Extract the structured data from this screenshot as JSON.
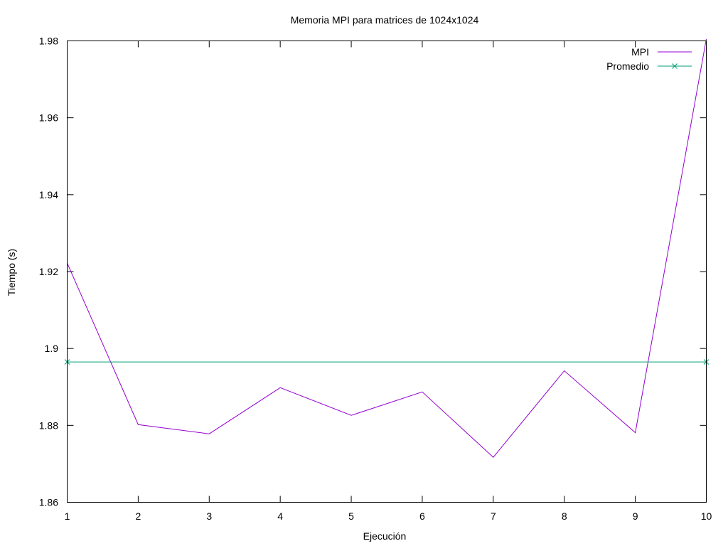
{
  "chart_data": {
    "type": "line",
    "title": "Memoria MPI para matrices de 1024x1024",
    "xlabel": "Ejecución",
    "ylabel": "Tiempo (s)",
    "xlim": [
      1,
      10
    ],
    "ylim": [
      1.86,
      1.98
    ],
    "x_ticks": [
      1,
      2,
      3,
      4,
      5,
      6,
      7,
      8,
      9,
      10
    ],
    "x_tick_labels": [
      "1",
      "2",
      "3",
      "4",
      "5",
      "6",
      "7",
      "8",
      "9",
      "10"
    ],
    "y_ticks": [
      1.86,
      1.88,
      1.9,
      1.92,
      1.94,
      1.96,
      1.98
    ],
    "y_tick_labels": [
      "1.86",
      "1.88",
      "1.9",
      "1.92",
      "1.94",
      "1.96",
      "1.98"
    ],
    "grid": false,
    "legend_position": "top-right",
    "series": [
      {
        "name": "MPI",
        "color": "#9400d3",
        "marker": "none",
        "x": [
          1,
          2,
          3,
          4,
          5,
          6,
          7,
          8,
          9,
          10
        ],
        "y": [
          1.9222,
          1.8802,
          1.8778,
          1.8898,
          1.8826,
          1.8887,
          1.8717,
          1.8942,
          1.8781,
          1.9805
        ]
      },
      {
        "name": "Promedio",
        "color": "#009e73",
        "marker": "x",
        "x": [
          1,
          10
        ],
        "y": [
          1.8965,
          1.8965
        ]
      }
    ]
  }
}
